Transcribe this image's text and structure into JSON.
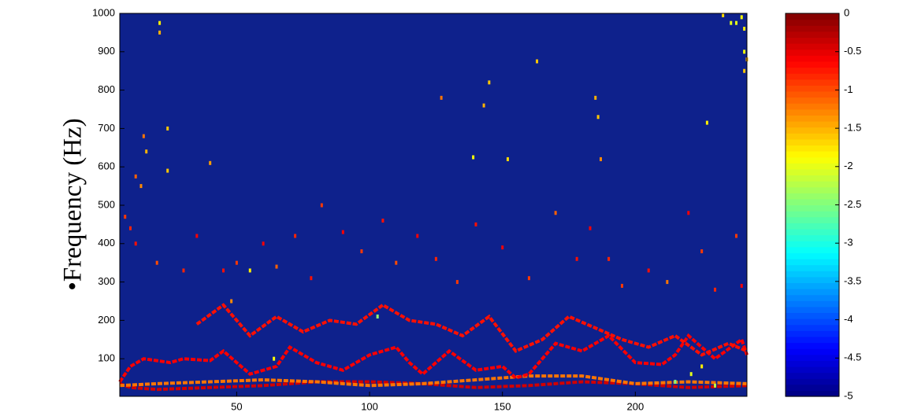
{
  "chart_data": {
    "type": "heatmap",
    "y_label": "•Frequency (Hz)",
    "xlim": [
      6,
      242
    ],
    "xticks": [
      50,
      100,
      150,
      200
    ],
    "ylim": [
      2,
      1000
    ],
    "yticks": [
      100,
      200,
      300,
      400,
      500,
      600,
      700,
      800,
      900,
      1000
    ],
    "clim": [
      -5,
      0
    ],
    "cticks": [
      0,
      -0.5,
      -1,
      -1.5,
      -2,
      -2.5,
      -3,
      -3.5,
      -4,
      -4.5,
      -5
    ],
    "colormap": "jet",
    "background_color": "#0e218c",
    "tracks": [
      {
        "level": -0.4,
        "x": [
          6,
          10,
          20,
          40,
          60,
          80,
          100,
          120,
          140,
          160,
          180,
          200,
          220,
          242
        ],
        "values": [
          35,
          25,
          20,
          25,
          30,
          40,
          40,
          35,
          25,
          30,
          40,
          35,
          25,
          30
        ]
      },
      {
        "level": -1.2,
        "x": [
          6,
          20,
          40,
          60,
          80,
          100,
          120,
          140,
          160,
          180,
          200,
          220,
          242
        ],
        "values": [
          30,
          35,
          40,
          45,
          40,
          30,
          35,
          45,
          55,
          55,
          35,
          40,
          35
        ]
      },
      {
        "level": -0.6,
        "x": [
          6,
          10,
          15,
          25,
          30,
          40,
          45,
          55,
          65,
          70,
          80,
          90,
          100,
          110,
          115,
          120,
          130,
          140,
          150,
          155,
          160,
          170,
          180,
          190,
          200,
          210,
          215,
          220,
          230,
          240,
          242
        ],
        "values": [
          40,
          80,
          100,
          90,
          100,
          95,
          120,
          60,
          80,
          130,
          90,
          70,
          110,
          130,
          90,
          60,
          120,
          70,
          80,
          50,
          60,
          140,
          120,
          160,
          90,
          85,
          110,
          160,
          100,
          150,
          110
        ]
      },
      {
        "level": -0.7,
        "x": [
          35,
          45,
          55,
          65,
          75,
          85,
          95,
          105,
          115,
          125,
          135,
          145,
          155,
          165,
          175,
          185,
          195,
          205,
          215,
          225,
          235,
          242
        ],
        "values": [
          190,
          240,
          160,
          210,
          170,
          200,
          190,
          240,
          200,
          190,
          160,
          210,
          120,
          150,
          210,
          180,
          150,
          130,
          160,
          110,
          140,
          120
        ]
      }
    ],
    "points": {
      "x": [
        21,
        21,
        24,
        15,
        16,
        12,
        14,
        40,
        24,
        145,
        163,
        127,
        143,
        185,
        186,
        187,
        139,
        152,
        227,
        241,
        242,
        241,
        241,
        236,
        238,
        240,
        233,
        8,
        10,
        12,
        20,
        30,
        35,
        45,
        50,
        60,
        65,
        72,
        78,
        82,
        90,
        97,
        105,
        110,
        118,
        125,
        133,
        140,
        150,
        160,
        170,
        178,
        183,
        190,
        195,
        205,
        212,
        220,
        225,
        230,
        238,
        240,
        55,
        103,
        64,
        221,
        225,
        215,
        230,
        48
      ],
      "y": [
        975,
        950,
        700,
        680,
        640,
        575,
        550,
        610,
        590,
        820,
        875,
        780,
        760,
        780,
        730,
        620,
        625,
        620,
        715,
        850,
        880,
        900,
        960,
        975,
        975,
        990,
        995,
        470,
        440,
        400,
        350,
        330,
        420,
        330,
        350,
        400,
        340,
        420,
        310,
        500,
        430,
        380,
        460,
        350,
        420,
        360,
        300,
        450,
        390,
        310,
        480,
        360,
        440,
        360,
        290,
        330,
        300,
        480,
        380,
        280,
        420,
        290,
        330,
        210,
        100,
        60,
        80,
        40,
        30,
        250
      ],
      "level": [
        -1.8,
        -1.5,
        -1.6,
        -1.2,
        -1.5,
        -1.1,
        -1.3,
        -1.4,
        -1.6,
        -1.6,
        -1.6,
        -1.2,
        -1.5,
        -1.5,
        -1.6,
        -1.3,
        -1.9,
        -1.7,
        -1.8,
        -1.6,
        -1.5,
        -1.9,
        -1.8,
        -2,
        -2,
        -1.9,
        -1.7,
        -0.9,
        -0.8,
        -0.7,
        -1,
        -0.8,
        -0.6,
        -0.7,
        -0.9,
        -0.6,
        -1.1,
        -0.8,
        -0.7,
        -0.9,
        -0.6,
        -0.9,
        -0.7,
        -1,
        -0.6,
        -0.8,
        -0.9,
        -0.7,
        -0.6,
        -0.9,
        -1.1,
        -0.7,
        -0.6,
        -0.8,
        -0.9,
        -0.7,
        -1.2,
        -0.6,
        -0.9,
        -0.8,
        -0.9,
        -0.6,
        -1.8,
        -2.4,
        -1.9,
        -2,
        -1.8,
        -2.5,
        -2.2,
        -1.3
      ]
    }
  }
}
